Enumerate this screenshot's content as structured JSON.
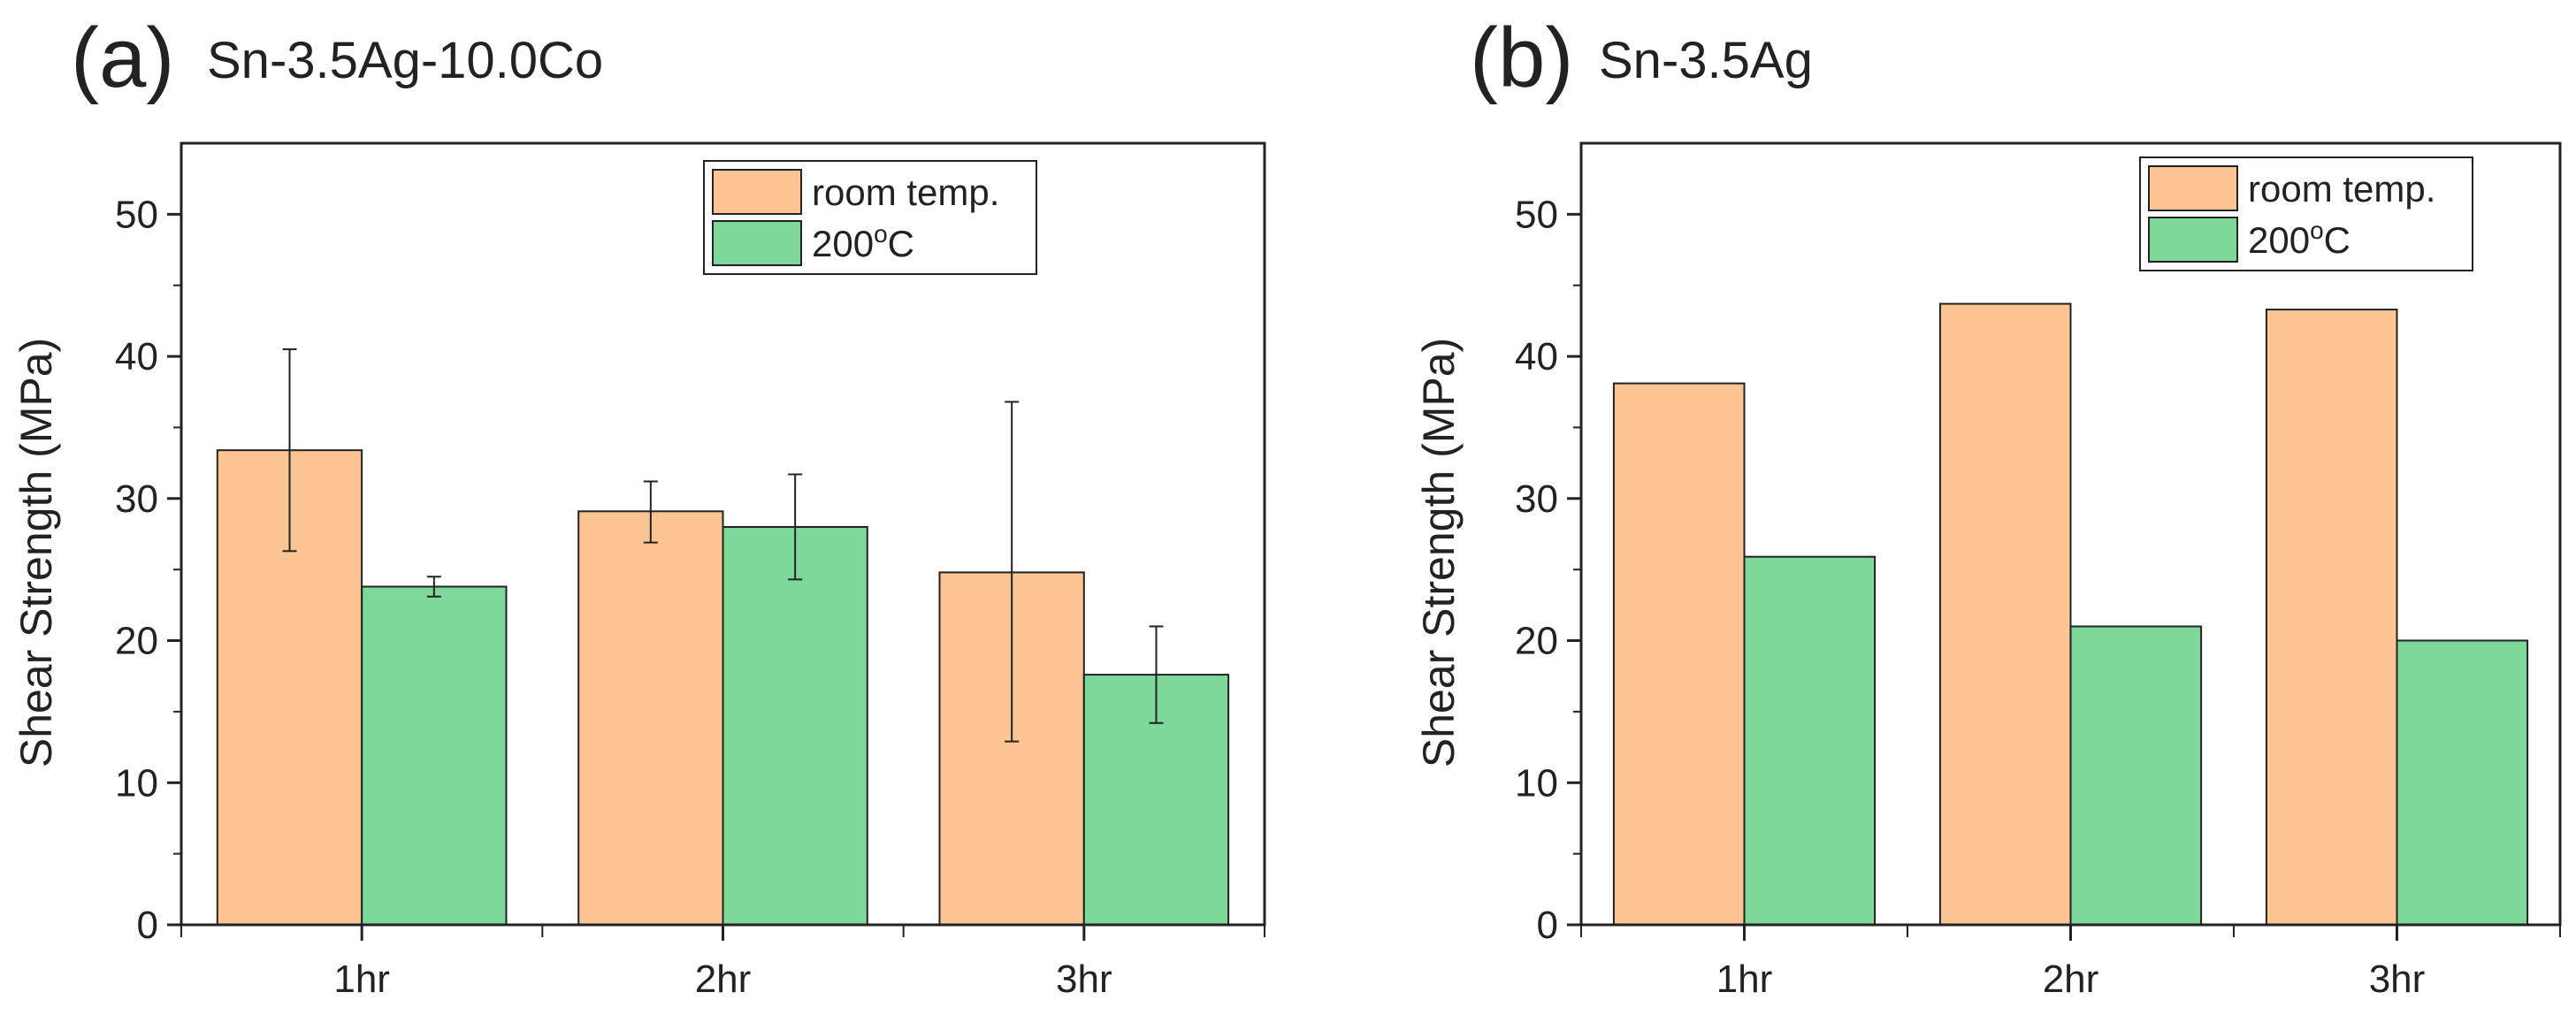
{
  "colors": {
    "room_temp": "#FAC592",
    "heated": "#7DD899",
    "axis": "#222222"
  },
  "chart_data": [
    {
      "type": "bar",
      "panel_letter": "(a)",
      "title": "Sn-3.5Ag-10.0Co",
      "xlabel": "",
      "ylabel": "Shear Strength (MPa)",
      "ylim": [
        0,
        55
      ],
      "yticks": [
        "0",
        "10",
        "20",
        "30",
        "40",
        "50"
      ],
      "categories": [
        "1hr",
        "2hr",
        "3hr"
      ],
      "legend_position": "top-right",
      "series": [
        {
          "name": "room temp.",
          "values": [
            33.4,
            29.1,
            24.8
          ],
          "error_low": [
            26.3,
            26.9,
            12.9
          ],
          "error_high": [
            40.5,
            31.2,
            36.8
          ]
        },
        {
          "name": "200oC",
          "name_base": "200",
          "name_sup": "o",
          "name_tail": "C",
          "values": [
            23.8,
            28.0,
            17.6
          ],
          "error_low": [
            23.1,
            24.3,
            14.2
          ],
          "error_high": [
            24.5,
            31.7,
            21.0
          ]
        }
      ]
    },
    {
      "type": "bar",
      "panel_letter": "(b)",
      "title": "Sn-3.5Ag",
      "xlabel": "",
      "ylabel": "Shear Strength (MPa)",
      "ylim": [
        0,
        55
      ],
      "yticks": [
        "0",
        "10",
        "20",
        "30",
        "40",
        "50"
      ],
      "categories": [
        "1hr",
        "2hr",
        "3hr"
      ],
      "legend_position": "top-right",
      "series": [
        {
          "name": "room temp.",
          "values": [
            38.1,
            43.7,
            43.3
          ]
        },
        {
          "name": "200oC",
          "name_base": "200",
          "name_sup": "o",
          "name_tail": "C",
          "values": [
            25.9,
            21.0,
            20.0
          ]
        }
      ]
    }
  ]
}
